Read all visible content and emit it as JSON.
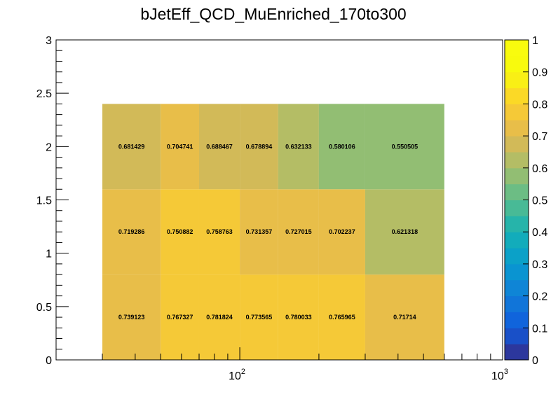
{
  "chart_data": {
    "type": "heatmap",
    "title": "bJetEff_QCD_MuEnriched_170to300",
    "xlabel": "",
    "ylabel": "",
    "x_scale": "log",
    "xlim": [
      20,
      1000
    ],
    "ylim": [
      0,
      3
    ],
    "x_edges": [
      30,
      50,
      70,
      100,
      140,
      200,
      300,
      600
    ],
    "y_edges": [
      0,
      0.8,
      1.6,
      2.4
    ],
    "cell_labels_x_index": [
      0,
      1,
      2,
      3,
      4,
      5,
      6
    ],
    "values": [
      [
        0.739123,
        0.767327,
        0.781824,
        0.773565,
        0.780033,
        0.765965,
        0.71714
      ],
      [
        0.719286,
        0.750882,
        0.758763,
        0.731357,
        0.727015,
        0.702237,
        0.621318
      ],
      [
        0.681429,
        0.704741,
        0.688467,
        0.678894,
        0.632133,
        0.580106,
        0.550505
      ]
    ],
    "value_labels": [
      [
        "0.739123",
        "0.767327",
        "0.781824",
        "0.773565",
        "0.780033",
        "0.765965",
        "0.71714"
      ],
      [
        "0.719286",
        "0.750882",
        "0.758763",
        "0.731357",
        "0.727015",
        "0.702237",
        "0.621318"
      ],
      [
        "0.681429",
        "0.704741",
        "0.688467",
        "0.678894",
        "0.632133",
        "0.580106",
        "0.550505"
      ]
    ],
    "y_ticks": [
      "0",
      "0.5",
      "1",
      "1.5",
      "2",
      "2.5",
      "3"
    ],
    "y_tick_values": [
      0,
      0.5,
      1,
      1.5,
      2,
      2.5,
      3
    ],
    "x_ticks": [
      {
        "value": 100,
        "base": "10",
        "exp": "2"
      },
      {
        "value": 1000,
        "base": "10",
        "exp": "3"
      }
    ],
    "colorbar": {
      "zlim": [
        0,
        1
      ],
      "n_levels": 20,
      "ticks": [
        "0",
        "0.1",
        "0.2",
        "0.3",
        "0.4",
        "0.5",
        "0.6",
        "0.7",
        "0.8",
        "0.9",
        "1"
      ],
      "tick_values": [
        0,
        0.1,
        0.2,
        0.3,
        0.4,
        0.5,
        0.6,
        0.7,
        0.8,
        0.9,
        1.0
      ]
    },
    "grid": false
  }
}
